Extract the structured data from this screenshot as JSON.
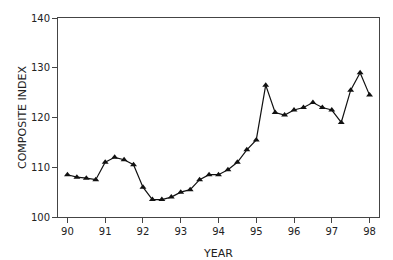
{
  "chart_data": {
    "type": "line",
    "x": [
      90.0,
      90.25,
      90.5,
      90.75,
      91.0,
      91.25,
      91.5,
      91.75,
      92.0,
      92.25,
      92.5,
      92.75,
      93.0,
      93.25,
      93.5,
      93.75,
      94.0,
      94.25,
      94.5,
      94.75,
      95.0,
      95.25,
      95.5,
      95.75,
      96.0,
      96.25,
      96.5,
      96.75,
      97.0,
      97.25,
      97.5,
      97.75,
      98.0
    ],
    "values": [
      108.5,
      108.0,
      107.8,
      107.5,
      111.0,
      112.0,
      111.5,
      110.5,
      106.0,
      103.5,
      103.5,
      104.0,
      105.0,
      105.5,
      107.5,
      108.5,
      108.5,
      109.5,
      111.0,
      113.5,
      115.5,
      126.5,
      121.0,
      120.5,
      121.5,
      122.0,
      123.0,
      122.0,
      121.5,
      119.0,
      125.5,
      129.0,
      124.5
    ],
    "xlabel": "YEAR",
    "ylabel": "COMPOSITE INDEX",
    "color": "#111111",
    "marker": "triangle-up",
    "xlim": [
      89.75,
      98.25
    ],
    "ylim": [
      100,
      140
    ],
    "xticks": [
      90,
      91,
      92,
      93,
      94,
      95,
      96,
      97,
      98
    ],
    "yticks": [
      100,
      110,
      120,
      130,
      140
    ],
    "grid": false
  }
}
